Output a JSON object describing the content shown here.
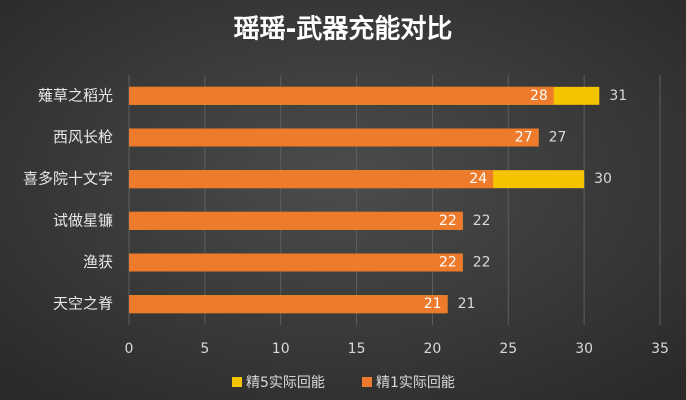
{
  "chart_data": {
    "type": "bar",
    "orientation": "horizontal",
    "title": "瑶瑶-武器充能对比",
    "categories": [
      "薙草之稻光",
      "西风长枪",
      "喜多院十文字",
      "试做星镰",
      "渔获",
      "天空之脊"
    ],
    "series": [
      {
        "name": "精5实际回能",
        "color": "#f5c400",
        "values": [
          31,
          27,
          30,
          22,
          22,
          21
        ]
      },
      {
        "name": "精1实际回能",
        "color": "#ee7a2c",
        "values": [
          28,
          27,
          24,
          22,
          22,
          21
        ]
      }
    ],
    "xlim": [
      0,
      35
    ],
    "xticks": [
      0,
      5,
      10,
      15,
      20,
      25,
      30,
      35
    ],
    "grid": true,
    "legend": "bottom"
  }
}
